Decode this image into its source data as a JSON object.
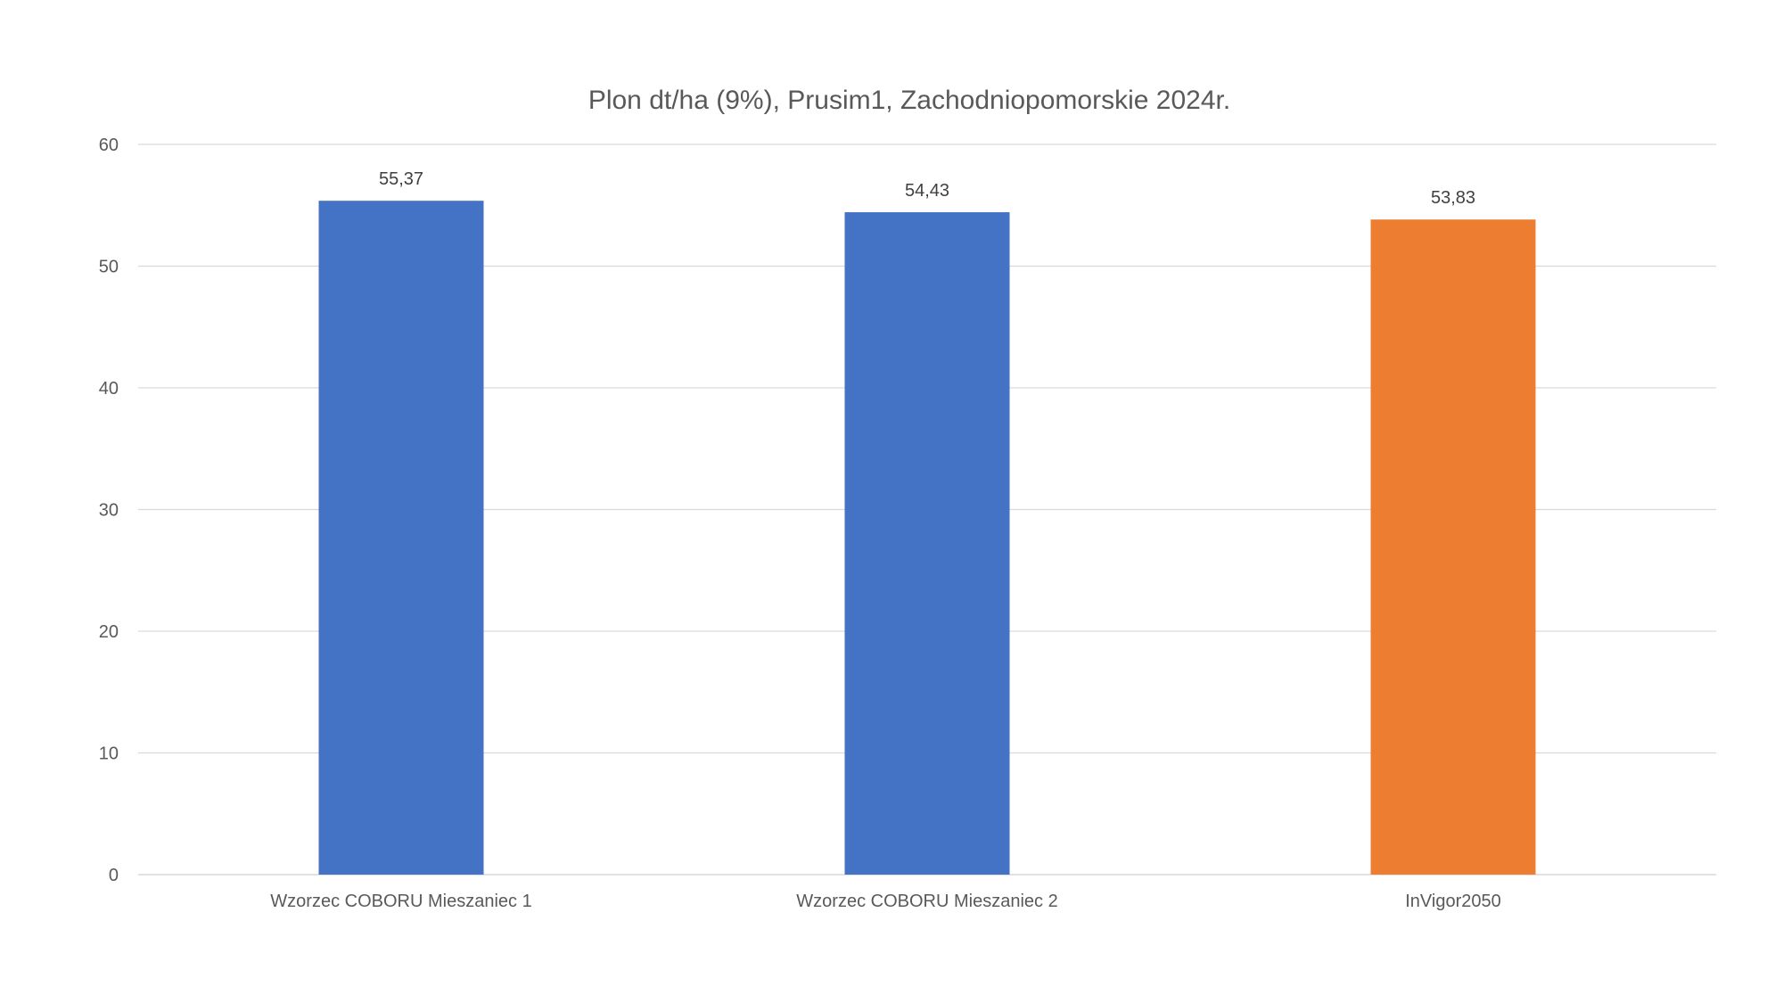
{
  "chart_data": {
    "type": "bar",
    "title": "Plon dt/ha (9%), Prusim1, Zachodniopomorskie 2024r.",
    "xlabel": "",
    "ylabel": "",
    "categories": [
      "Wzorzec COBORU Mieszaniec 1",
      "Wzorzec COBORU Mieszaniec 2",
      "InVigor2050"
    ],
    "values": [
      55.37,
      54.43,
      53.83
    ],
    "data_labels": [
      "55,37",
      "54,43",
      "53,83"
    ],
    "bar_colors": [
      "#4472C4",
      "#4472C4",
      "#ED7D31"
    ],
    "ylim": [
      0,
      60
    ],
    "yticks": [
      0,
      10,
      20,
      30,
      40,
      50,
      60
    ],
    "grid": true,
    "legend": "none"
  }
}
